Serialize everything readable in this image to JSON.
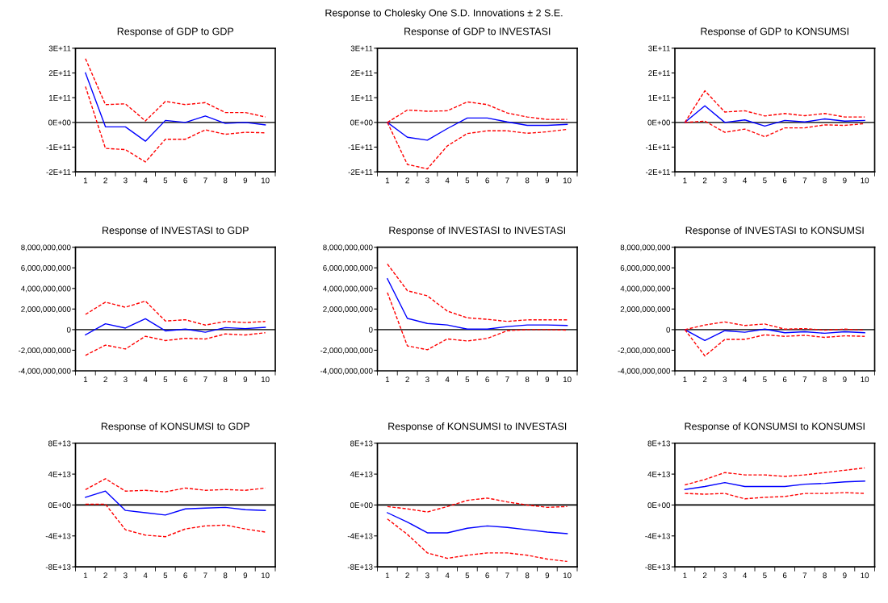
{
  "chart_data": [
    {
      "type": "line",
      "title": "Response of GDP to GDP",
      "annotations": [
        "Response to Cholesky One S.D. Innovations ± 2 S.E."
      ],
      "categories": [
        "1",
        "2",
        "3",
        "4",
        "5",
        "6",
        "7",
        "8",
        "9",
        "10"
      ],
      "ylim": [
        -200000000000.0,
        300000000000.0
      ],
      "yticks": [
        {
          "value": -200000000000.0,
          "label": "-2E+11"
        },
        {
          "value": -100000000000.0,
          "label": "-1E+11"
        },
        {
          "value": 0,
          "label": "0E+00"
        },
        {
          "value": 100000000000.0,
          "label": "1E+11"
        },
        {
          "value": 200000000000.0,
          "label": "2E+11"
        },
        {
          "value": 300000000000.0,
          "label": "3E+11"
        }
      ],
      "ref_lines": [
        {
          "axis": "y",
          "value": 0,
          "color": "#404040"
        }
      ],
      "grid": false,
      "legend": false,
      "series": [
        {
          "color": "#0000ff",
          "line_style": "solid",
          "values": [
            200000000000.0,
            -18000000000.0,
            -18000000000.0,
            -76000000000.0,
            8000000000.0,
            0.0,
            26000000000.0,
            -4000000000.0,
            0.0,
            -10000000000.0
          ]
        },
        {
          "color": "#ff0000",
          "line_style": "dashed",
          "values": [
            258000000000.0,
            72000000000.0,
            75000000000.0,
            6000000000.0,
            85000000000.0,
            72000000000.0,
            80000000000.0,
            40000000000.0,
            40000000000.0,
            22000000000.0
          ]
        },
        {
          "color": "#ff0000",
          "line_style": "dashed",
          "values": [
            145000000000.0,
            -105000000000.0,
            -110000000000.0,
            -160000000000.0,
            -68000000000.0,
            -68000000000.0,
            -30000000000.0,
            -48000000000.0,
            -40000000000.0,
            -42000000000.0
          ]
        }
      ]
    },
    {
      "type": "line",
      "title": "Response of GDP to INVESTASI",
      "categories": [
        "1",
        "2",
        "3",
        "4",
        "5",
        "6",
        "7",
        "8",
        "9",
        "10"
      ],
      "ylim": [
        -200000000000.0,
        300000000000.0
      ],
      "yticks": [
        {
          "value": -200000000000.0,
          "label": "-2E+11"
        },
        {
          "value": -100000000000.0,
          "label": "-1E+11"
        },
        {
          "value": 0,
          "label": "0E+00"
        },
        {
          "value": 100000000000.0,
          "label": "1E+11"
        },
        {
          "value": 200000000000.0,
          "label": "2E+11"
        },
        {
          "value": 300000000000.0,
          "label": "3E+11"
        }
      ],
      "ref_lines": [
        {
          "axis": "y",
          "value": 0,
          "color": "#404040"
        }
      ],
      "grid": false,
      "legend": false,
      "series": [
        {
          "color": "#0000ff",
          "line_style": "solid",
          "values": [
            0.0,
            -60000000000.0,
            -72000000000.0,
            -25000000000.0,
            18000000000.0,
            18000000000.0,
            2000000000.0,
            -12000000000.0,
            -12000000000.0,
            -8000000000.0
          ]
        },
        {
          "color": "#ff0000",
          "line_style": "dashed",
          "values": [
            0.0,
            50000000000.0,
            45000000000.0,
            47000000000.0,
            83000000000.0,
            72000000000.0,
            38000000000.0,
            22000000000.0,
            12000000000.0,
            12000000000.0
          ]
        },
        {
          "color": "#ff0000",
          "line_style": "dashed",
          "values": [
            0.0,
            -170000000000.0,
            -188000000000.0,
            -95000000000.0,
            -45000000000.0,
            -34000000000.0,
            -34000000000.0,
            -44000000000.0,
            -38000000000.0,
            -28000000000.0
          ]
        }
      ]
    },
    {
      "type": "line",
      "title": "Response of GDP to KONSUMSI",
      "categories": [
        "1",
        "2",
        "3",
        "4",
        "5",
        "6",
        "7",
        "8",
        "9",
        "10"
      ],
      "ylim": [
        -200000000000.0,
        300000000000.0
      ],
      "yticks": [
        {
          "value": -200000000000.0,
          "label": "-2E+11"
        },
        {
          "value": -100000000000.0,
          "label": "-1E+11"
        },
        {
          "value": 0,
          "label": "0E+00"
        },
        {
          "value": 100000000000.0,
          "label": "1E+11"
        },
        {
          "value": 200000000000.0,
          "label": "2E+11"
        },
        {
          "value": 300000000000.0,
          "label": "3E+11"
        }
      ],
      "ref_lines": [
        {
          "axis": "y",
          "value": 0,
          "color": "#404040"
        }
      ],
      "grid": false,
      "legend": false,
      "series": [
        {
          "color": "#0000ff",
          "line_style": "solid",
          "values": [
            0.0,
            67000000000.0,
            0.0,
            10000000000.0,
            -15000000000.0,
            8000000000.0,
            2000000000.0,
            14000000000.0,
            5000000000.0,
            8000000000.0
          ]
        },
        {
          "color": "#ff0000",
          "line_style": "dashed",
          "values": [
            0.0,
            128000000000.0,
            42000000000.0,
            47000000000.0,
            26000000000.0,
            36000000000.0,
            27000000000.0,
            36000000000.0,
            22000000000.0,
            22000000000.0
          ]
        },
        {
          "color": "#ff0000",
          "line_style": "dashed",
          "values": [
            0.0,
            5000000000.0,
            -40000000000.0,
            -27000000000.0,
            -58000000000.0,
            -22000000000.0,
            -22000000000.0,
            -10000000000.0,
            -12000000000.0,
            -5000000000.0
          ]
        }
      ]
    },
    {
      "type": "line",
      "title": "Response of INVESTASI to GDP",
      "categories": [
        "1",
        "2",
        "3",
        "4",
        "5",
        "6",
        "7",
        "8",
        "9",
        "10"
      ],
      "ylim": [
        -4000000000.0,
        8000000000.0
      ],
      "yticks": [
        {
          "value": -4000000000.0,
          "label": "-4,000,000,000"
        },
        {
          "value": -2000000000.0,
          "label": "-2,000,000,000"
        },
        0,
        {
          "value": 2000000000.0,
          "label": "2,000,000,000"
        },
        {
          "value": 4000000000.0,
          "label": "4,000,000,000"
        },
        {
          "value": 6000000000.0,
          "label": "6,000,000,000"
        },
        {
          "value": 8000000000.0,
          "label": "8,000,000,000"
        }
      ],
      "ref_lines": [
        {
          "axis": "y",
          "value": 0,
          "color": "#404040"
        }
      ],
      "grid": false,
      "legend": false,
      "series": [
        {
          "color": "#0000ff",
          "line_style": "solid",
          "values": [
            -500000000.0,
            570000000.0,
            150000000.0,
            1060000000.0,
            -120000000.0,
            50000000.0,
            -250000000.0,
            200000000.0,
            100000000.0,
            220000000.0
          ]
        },
        {
          "color": "#ff0000",
          "line_style": "dashed",
          "values": [
            1480000000.0,
            2670000000.0,
            2170000000.0,
            2770000000.0,
            840000000.0,
            960000000.0,
            440000000.0,
            790000000.0,
            690000000.0,
            790000000.0
          ]
        },
        {
          "color": "#ff0000",
          "line_style": "dashed",
          "values": [
            -2500000000.0,
            -1500000000.0,
            -1880000000.0,
            -640000000.0,
            -1060000000.0,
            -840000000.0,
            -910000000.0,
            -420000000.0,
            -520000000.0,
            -300000000.0
          ]
        }
      ]
    },
    {
      "type": "line",
      "title": "Response of INVESTASI to INVESTASI",
      "categories": [
        "1",
        "2",
        "3",
        "4",
        "5",
        "6",
        "7",
        "8",
        "9",
        "10"
      ],
      "ylim": [
        -4000000000.0,
        8000000000.0
      ],
      "yticks": [
        {
          "value": -4000000000.0,
          "label": "-4,000,000,000"
        },
        {
          "value": -2000000000.0,
          "label": "-2,000,000,000"
        },
        0,
        {
          "value": 2000000000.0,
          "label": "2,000,000,000"
        },
        {
          "value": 4000000000.0,
          "label": "4,000,000,000"
        },
        {
          "value": 6000000000.0,
          "label": "6,000,000,000"
        },
        {
          "value": 8000000000.0,
          "label": "8,000,000,000"
        }
      ],
      "ref_lines": [
        {
          "axis": "y",
          "value": 0,
          "color": "#404040"
        }
      ],
      "grid": false,
      "legend": false,
      "series": [
        {
          "color": "#0000ff",
          "line_style": "solid",
          "values": [
            4940000000.0,
            1090000000.0,
            600000000.0,
            450000000.0,
            50000000.0,
            50000000.0,
            300000000.0,
            450000000.0,
            450000000.0,
            400000000.0
          ]
        },
        {
          "color": "#ff0000",
          "line_style": "dashed",
          "values": [
            6370000000.0,
            3780000000.0,
            3280000000.0,
            1800000000.0,
            1150000000.0,
            1000000000.0,
            800000000.0,
            950000000.0,
            950000000.0,
            950000000.0
          ]
        },
        {
          "color": "#ff0000",
          "line_style": "dashed",
          "values": [
            3600000000.0,
            -1580000000.0,
            -1950000000.0,
            -900000000.0,
            -1100000000.0,
            -850000000.0,
            -100000000.0,
            0.0,
            0.0,
            -50000000.0
          ]
        }
      ]
    },
    {
      "type": "line",
      "title": "Response of INVESTASI to KONSUMSI",
      "categories": [
        "1",
        "2",
        "3",
        "4",
        "5",
        "6",
        "7",
        "8",
        "9",
        "10"
      ],
      "ylim": [
        -4000000000.0,
        8000000000.0
      ],
      "yticks": [
        {
          "value": -4000000000.0,
          "label": "-4,000,000,000"
        },
        {
          "value": -2000000000.0,
          "label": "-2,000,000,000"
        },
        0,
        {
          "value": 2000000000.0,
          "label": "2,000,000,000"
        },
        {
          "value": 4000000000.0,
          "label": "4,000,000,000"
        },
        {
          "value": 6000000000.0,
          "label": "6,000,000,000"
        },
        {
          "value": 8000000000.0,
          "label": "8,000,000,000"
        }
      ],
      "ref_lines": [
        {
          "axis": "y",
          "value": 0,
          "color": "#404040"
        }
      ],
      "grid": false,
      "legend": false,
      "series": [
        {
          "color": "#0000ff",
          "line_style": "solid",
          "values": [
            0.0,
            -1050000000.0,
            -100000000.0,
            -250000000.0,
            50000000.0,
            -300000000.0,
            -200000000.0,
            -350000000.0,
            -200000000.0,
            -300000000.0
          ]
        },
        {
          "color": "#ff0000",
          "line_style": "dashed",
          "values": [
            0.0,
            450000000.0,
            750000000.0,
            400000000.0,
            550000000.0,
            50000000.0,
            100000000.0,
            -50000000.0,
            50000000.0,
            -50000000.0
          ]
        },
        {
          "color": "#ff0000",
          "line_style": "dashed",
          "values": [
            0.0,
            -2550000000.0,
            -950000000.0,
            -950000000.0,
            -500000000.0,
            -650000000.0,
            -550000000.0,
            -750000000.0,
            -600000000.0,
            -650000000.0
          ]
        }
      ]
    },
    {
      "type": "line",
      "title": "Response of KONSUMSI to GDP",
      "categories": [
        "1",
        "2",
        "3",
        "4",
        "5",
        "6",
        "7",
        "8",
        "9",
        "10"
      ],
      "ylim": [
        -80000000000000.0,
        80000000000000.0
      ],
      "yticks": [
        {
          "value": -80000000000000.0,
          "label": "-8E+13"
        },
        {
          "value": -40000000000000.0,
          "label": "-4E+13"
        },
        {
          "value": 0,
          "label": "0E+00"
        },
        {
          "value": 40000000000000.0,
          "label": "4E+13"
        },
        {
          "value": 80000000000000.0,
          "label": "8E+13"
        }
      ],
      "ref_lines": [
        {
          "axis": "y",
          "value": 0,
          "color": "#000000"
        }
      ],
      "grid": false,
      "legend": false,
      "series": [
        {
          "color": "#0000ff",
          "line_style": "solid",
          "values": [
            10000000000000.0,
            18000000000000.0,
            -7000000000000.0,
            -10000000000000.0,
            -13000000000000.0,
            -5000000000000.0,
            -4000000000000.0,
            -3000000000000.0,
            -6000000000000.0,
            -7000000000000.0
          ]
        },
        {
          "color": "#ff0000",
          "line_style": "dashed",
          "values": [
            20000000000000.0,
            34000000000000.0,
            18000000000000.0,
            19000000000000.0,
            17000000000000.0,
            22000000000000.0,
            19000000000000.0,
            20000000000000.0,
            19000000000000.0,
            22000000000000.0
          ]
        },
        {
          "color": "#ff0000",
          "line_style": "dashed",
          "values": [
            1000000000000.0,
            1000000000000.0,
            -32000000000000.0,
            -39000000000000.0,
            -41000000000000.0,
            -31000000000000.0,
            -27000000000000.0,
            -26000000000000.0,
            -31000000000000.0,
            -35000000000000.0
          ]
        }
      ]
    },
    {
      "type": "line",
      "title": "Response of KONSUMSI to INVESTASI",
      "categories": [
        "1",
        "2",
        "3",
        "4",
        "5",
        "6",
        "7",
        "8",
        "9",
        "10"
      ],
      "ylim": [
        -80000000000000.0,
        80000000000000.0
      ],
      "yticks": [
        {
          "value": -80000000000000.0,
          "label": "-8E+13"
        },
        {
          "value": -40000000000000.0,
          "label": "-4E+13"
        },
        {
          "value": 0,
          "label": "0E+00"
        },
        {
          "value": 40000000000000.0,
          "label": "4E+13"
        },
        {
          "value": 80000000000000.0,
          "label": "8E+13"
        }
      ],
      "ref_lines": [
        {
          "axis": "y",
          "value": 0,
          "color": "#000000"
        }
      ],
      "grid": false,
      "legend": false,
      "series": [
        {
          "color": "#0000ff",
          "line_style": "solid",
          "values": [
            -10000000000000.0,
            -22000000000000.0,
            -36000000000000.0,
            -36000000000000.0,
            -30000000000000.0,
            -27000000000000.0,
            -29000000000000.0,
            -32000000000000.0,
            -35000000000000.0,
            -37000000000000.0
          ]
        },
        {
          "color": "#ff0000",
          "line_style": "dashed",
          "values": [
            -2000000000000.0,
            -5000000000000.0,
            -9000000000000.0,
            -2000000000000.0,
            6000000000000.0,
            9000000000000.0,
            4000000000000.0,
            0.0,
            -3000000000000.0,
            -2000000000000.0
          ]
        },
        {
          "color": "#ff0000",
          "line_style": "dashed",
          "values": [
            -18000000000000.0,
            -38000000000000.0,
            -62000000000000.0,
            -69000000000000.0,
            -65000000000000.0,
            -62000000000000.0,
            -62000000000000.0,
            -65000000000000.0,
            -70000000000000.0,
            -73000000000000.0
          ]
        }
      ]
    },
    {
      "type": "line",
      "title": "Response of KONSUMSI to KONSUMSI",
      "categories": [
        "1",
        "2",
        "3",
        "4",
        "5",
        "6",
        "7",
        "8",
        "9",
        "10"
      ],
      "ylim": [
        -80000000000000.0,
        80000000000000.0
      ],
      "yticks": [
        {
          "value": -80000000000000.0,
          "label": "-8E+13"
        },
        {
          "value": -40000000000000.0,
          "label": "-4E+13"
        },
        {
          "value": 0,
          "label": "0E+00"
        },
        {
          "value": 40000000000000.0,
          "label": "4E+13"
        },
        {
          "value": 80000000000000.0,
          "label": "8E+13"
        }
      ],
      "ref_lines": [
        {
          "axis": "y",
          "value": 0,
          "color": "#000000"
        }
      ],
      "grid": false,
      "legend": false,
      "series": [
        {
          "color": "#0000ff",
          "line_style": "solid",
          "values": [
            20000000000000.0,
            24000000000000.0,
            29000000000000.0,
            24000000000000.0,
            24000000000000.0,
            24000000000000.0,
            27000000000000.0,
            28000000000000.0,
            30000000000000.0,
            31000000000000.0
          ]
        },
        {
          "color": "#ff0000",
          "line_style": "dashed",
          "values": [
            26000000000000.0,
            33000000000000.0,
            42000000000000.0,
            39000000000000.0,
            39000000000000.0,
            37000000000000.0,
            39000000000000.0,
            42000000000000.0,
            45000000000000.0,
            48000000000000.0
          ]
        },
        {
          "color": "#ff0000",
          "line_style": "dashed",
          "values": [
            15000000000000.0,
            14000000000000.0,
            15000000000000.0,
            8000000000000.0,
            10000000000000.0,
            11000000000000.0,
            15000000000000.0,
            15000000000000.0,
            16000000000000.0,
            15000000000000.0
          ]
        }
      ]
    }
  ]
}
